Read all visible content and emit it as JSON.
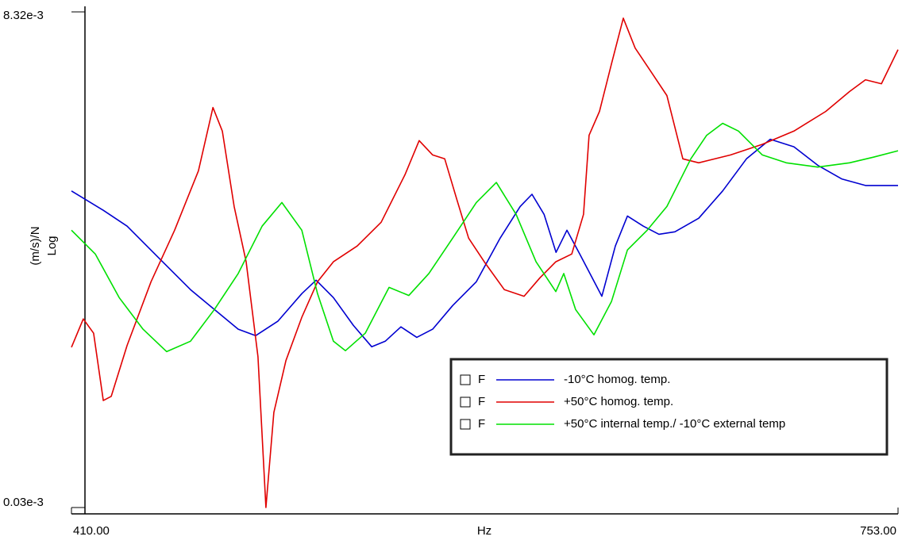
{
  "chart_data": {
    "type": "line",
    "y_label": "(m/s)/N",
    "y_scale_label": "Log",
    "x_label": "Hz",
    "log_y": true,
    "legend_position": "lower right",
    "legend_prefix": "F",
    "xlim": [
      410,
      753
    ],
    "xticks": [
      {
        "value": 410,
        "label": "410.00"
      },
      {
        "value": 753,
        "label": "753.00"
      }
    ],
    "ylim": [
      3e-05,
      0.00832
    ],
    "yticks": [
      {
        "value": 0.00832,
        "label": "8.32e-3"
      },
      {
        "value": 3e-05,
        "label": "0.03e-3"
      }
    ],
    "series": [
      {
        "name": "-10°C homog. temp.",
        "color": "#0000d0",
        "x": [
          410,
          423.2,
          433.1,
          446.2,
          459.4,
          469.3,
          479.2,
          486.4,
          495.7,
          505.6,
          511.5,
          518.7,
          527.0,
          534.6,
          540.2,
          546.7,
          553.3,
          559.9,
          568.2,
          578.0,
          587.9,
          596.2,
          601.1,
          606.1,
          611.1,
          615.6,
          620.9,
          630.1,
          635.7,
          640.7,
          647.3,
          653.8,
          660.4,
          670.3,
          680.2,
          690.1,
          700.0,
          709.8,
          719.7,
          729.6,
          739.5,
          753
        ],
        "values": [
          0.00109,
          0.000875,
          0.000731,
          0.00051,
          0.000356,
          0.000284,
          0.000227,
          0.000211,
          0.000249,
          0.00034,
          0.000396,
          0.000325,
          0.000237,
          0.000186,
          0.000198,
          0.000233,
          0.000207,
          0.000227,
          0.000297,
          0.000389,
          0.000638,
          0.000914,
          0.00105,
          0.000836,
          0.000543,
          0.000698,
          0.000533,
          0.00033,
          0.000584,
          0.00082,
          0.000731,
          0.000667,
          0.000686,
          0.0008,
          0.00109,
          0.00157,
          0.00196,
          0.0018,
          0.00146,
          0.00125,
          0.00116,
          0.00116
        ]
      },
      {
        "name": "+50°C homog. temp.",
        "color": "#e00000",
        "x": [
          410,
          414.9,
          419.2,
          423.2,
          426.5,
          433.1,
          443.0,
          452.8,
          462.7,
          468.7,
          472.6,
          477.5,
          482.5,
          487.4,
          490.7,
          494.0,
          499.0,
          505.6,
          512.1,
          518.7,
          528.6,
          538.5,
          548.4,
          554.3,
          559.9,
          564.9,
          569.8,
          574.8,
          581.3,
          589.6,
          597.8,
          604.4,
          611.0,
          617.6,
          622.5,
          624.8,
          629.1,
          634.1,
          639.0,
          643.9,
          650.5,
          657.1,
          663.7,
          670.3,
          683.5,
          696.7,
          709.8,
          723.0,
          732.9,
          739.5,
          746.1,
          753
        ],
        "values": [
          0.000185,
          0.000255,
          0.000217,
          0.000101,
          0.000106,
          0.000189,
          0.000389,
          0.000698,
          0.00137,
          0.00281,
          0.00215,
          0.000914,
          0.000488,
          0.000166,
          3e-05,
          8.83e-05,
          0.000159,
          0.00026,
          0.000389,
          0.000488,
          0.000584,
          0.000764,
          0.00131,
          0.00193,
          0.00164,
          0.00157,
          0.001,
          0.000638,
          0.000488,
          0.000356,
          0.00033,
          0.000407,
          0.000488,
          0.000533,
          0.000836,
          0.00205,
          0.00269,
          0.00461,
          0.00775,
          0.00552,
          0.00422,
          0.00322,
          0.00157,
          0.0015,
          0.00164,
          0.00185,
          0.00215,
          0.00269,
          0.00337,
          0.00385,
          0.00368,
          0.00542
        ]
      },
      {
        "name": "+50°C internal temp./ -10°C external temp",
        "color": "#00e000",
        "x": [
          410,
          419.9,
          429.8,
          439.7,
          449.5,
          459.4,
          469.3,
          479.2,
          489.1,
          497.3,
          505.6,
          512.1,
          518.7,
          523.7,
          531.9,
          541.8,
          550.0,
          558.3,
          568.2,
          578.0,
          586.3,
          594.5,
          602.8,
          611.0,
          614.3,
          619.2,
          626.8,
          634.1,
          640.7,
          648.9,
          657.1,
          667.0,
          673.6,
          680.2,
          686.8,
          696.7,
          706.6,
          719.7,
          732.9,
          742.8,
          753
        ],
        "values": [
          0.000698,
          0.000533,
          0.000325,
          0.000227,
          0.000176,
          0.000198,
          0.000284,
          0.000427,
          0.000731,
          0.000956,
          0.000698,
          0.00034,
          0.000198,
          0.000178,
          0.000217,
          0.000365,
          0.000333,
          0.000427,
          0.000638,
          0.000956,
          0.0012,
          0.000836,
          0.000488,
          0.000348,
          0.000427,
          0.000284,
          0.000213,
          0.000311,
          0.000558,
          0.000698,
          0.000914,
          0.00157,
          0.00205,
          0.00235,
          0.00215,
          0.00164,
          0.0015,
          0.00143,
          0.0015,
          0.0016,
          0.00172
        ]
      }
    ]
  }
}
